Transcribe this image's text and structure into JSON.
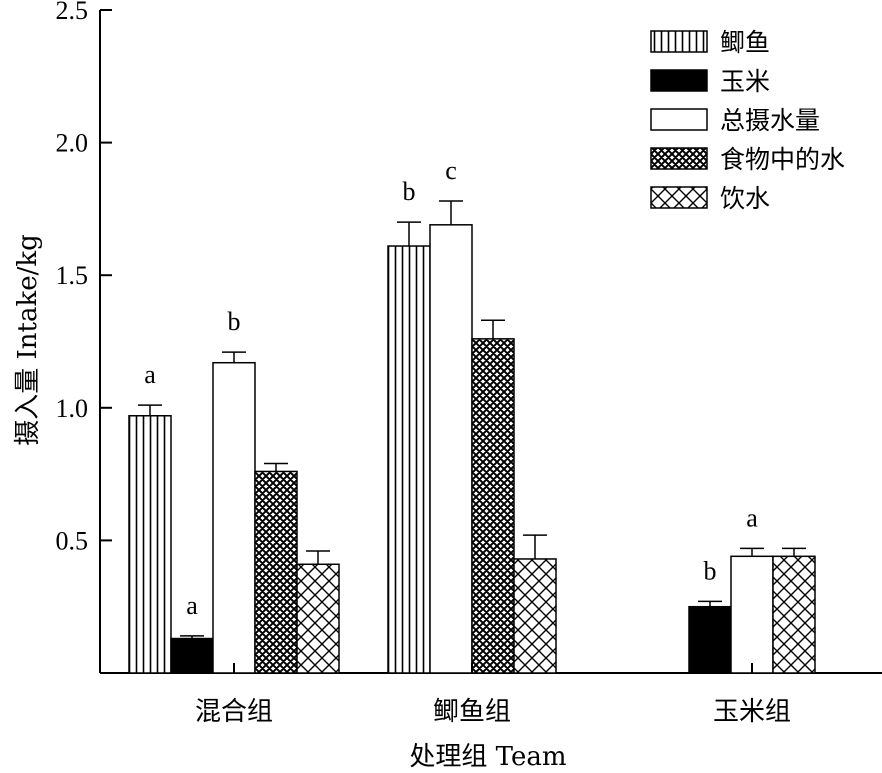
{
  "chart_data": {
    "type": "bar",
    "ylabel": "摄入量 Intake/kg",
    "xlabel": "处理组 Team",
    "ylim": [
      0,
      2.5
    ],
    "yticks": [
      "0.5",
      "1.0",
      "1.5",
      "2.0",
      "2.5"
    ],
    "categories": [
      "混合组",
      "鲫鱼组",
      "玉米组"
    ],
    "legend_position": "top-right",
    "series": [
      {
        "name": "鲫鱼",
        "pattern": "vertical-lines",
        "values": [
          0.97,
          1.61,
          null
        ],
        "errors": [
          0.04,
          0.09,
          null
        ]
      },
      {
        "name": "玉米",
        "pattern": "solid-black",
        "values": [
          0.13,
          null,
          0.25
        ],
        "errors": [
          0.01,
          null,
          0.02
        ]
      },
      {
        "name": "总摄水量",
        "pattern": "white",
        "values": [
          1.17,
          1.69,
          0.44
        ],
        "errors": [
          0.04,
          0.09,
          0.03
        ]
      },
      {
        "name": "食物中的水",
        "pattern": "fine-crosshatch",
        "values": [
          0.76,
          1.26,
          null
        ],
        "errors": [
          0.03,
          0.07,
          null
        ]
      },
      {
        "name": "饮水",
        "pattern": "diagonal-crosshatch",
        "values": [
          0.41,
          0.43,
          0.44
        ],
        "errors": [
          0.05,
          0.09,
          0.03
        ]
      }
    ],
    "annotations": [
      {
        "category": "混合组",
        "series": "鲫鱼",
        "text": "a"
      },
      {
        "category": "混合组",
        "series": "玉米",
        "text": "a"
      },
      {
        "category": "混合组",
        "series": "总摄水量",
        "text": "b"
      },
      {
        "category": "鲫鱼组",
        "series": "鲫鱼",
        "text": "b"
      },
      {
        "category": "鲫鱼组",
        "series": "总摄水量",
        "text": "c"
      },
      {
        "category": "玉米组",
        "series": "玉米",
        "text": "b"
      },
      {
        "category": "玉米组",
        "series": "总摄水量",
        "text": "a"
      }
    ]
  }
}
